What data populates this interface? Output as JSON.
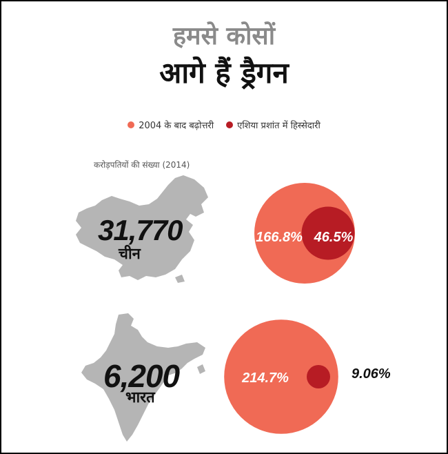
{
  "title_line1": "हमसे कोसों",
  "title_line2": "आगे हैं ड्रैगन",
  "subtitle": "करोड़पतियों की संख्या (2014)",
  "colors": {
    "growth": "#f06a55",
    "share": "#b71c24"
  },
  "chart_data": {
    "type": "bubble",
    "title": "हमसे कोसों आगे हैं ड्रैगन",
    "subtitle": "करोड़पतियों की संख्या (2014)",
    "legend": [
      {
        "label": "2004 के बाद बढ़ोत्तरी",
        "color": "#f06a55"
      },
      {
        "label": "एशिया प्रशांत में हिस्सेदारी",
        "color": "#b71c24"
      }
    ],
    "legend_position": "top-center",
    "rows": [
      {
        "country": "चीन",
        "millionaires": "31,770",
        "growth": "166.8%",
        "share": "46.5%",
        "growth_value": 166.8,
        "share_value": 46.5
      },
      {
        "country": "भारत",
        "millionaires": "6,200",
        "growth": "214.7%",
        "share": "9.06%",
        "growth_value": 214.7,
        "share_value": 9.06
      }
    ]
  }
}
